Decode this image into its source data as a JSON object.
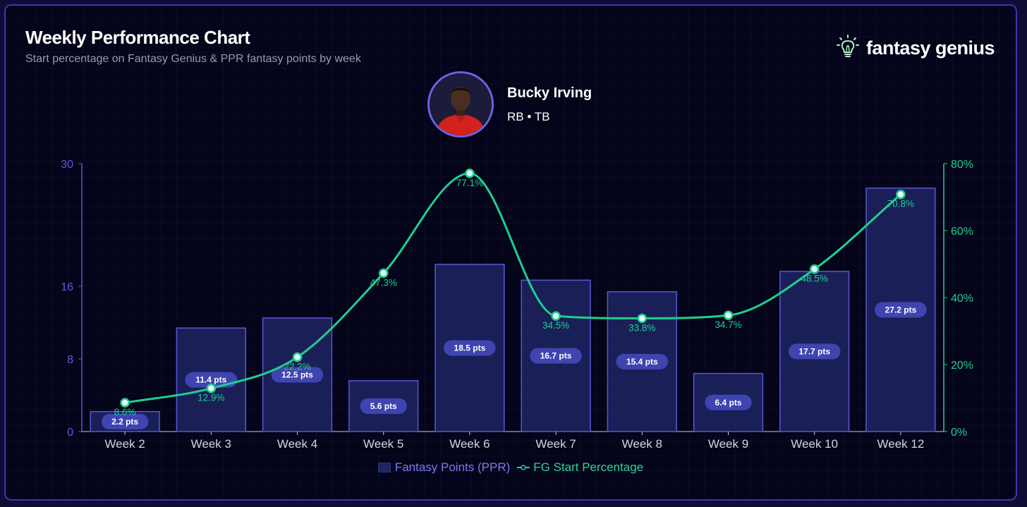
{
  "header": {
    "title": "Weekly Performance Chart",
    "subtitle": "Start percentage on Fantasy Genius & PPR fantasy points by week"
  },
  "brand": {
    "name": "fantasy genius",
    "icon": "lightbulb-icon"
  },
  "player": {
    "name": "Bucky Irving",
    "position_team": "RB • TB"
  },
  "colors": {
    "bar_fill": "#1e2463",
    "bar_stroke": "#5a57d6",
    "line": "#1fcf8f",
    "left_axis": "#5a57d6",
    "right_axis": "#1fcf8f",
    "pill": "#3f44b0"
  },
  "chart_data": {
    "type": "bar",
    "categories": [
      "Week 2",
      "Week 3",
      "Week 4",
      "Week 5",
      "Week 6",
      "Week 7",
      "Week 8",
      "Week 9",
      "Week 10",
      "Week 12"
    ],
    "series": [
      {
        "name": "Fantasy Points (PPR)",
        "type": "bar",
        "axis": "left",
        "values": [
          2.2,
          11.4,
          12.5,
          5.6,
          18.5,
          16.7,
          15.4,
          6.4,
          17.7,
          27.2
        ],
        "labels": [
          "2.2 pts",
          "11.4 pts",
          "12.5 pts",
          "5.6 pts",
          "18.5 pts",
          "16.7 pts",
          "15.4 pts",
          "6.4 pts",
          "17.7 pts",
          "27.2 pts"
        ]
      },
      {
        "name": "FG Start Percentage",
        "type": "line",
        "axis": "right",
        "values": [
          8.6,
          12.9,
          22.2,
          47.3,
          77.1,
          34.5,
          33.8,
          34.7,
          48.5,
          70.8
        ],
        "labels": [
          "8.6%",
          "12.9%",
          "22.2%",
          "47.3%",
          "77.1%",
          "34.5%",
          "33.8%",
          "34.7%",
          "48.5%",
          "70.8%"
        ]
      }
    ],
    "y_left": {
      "ticks": [
        0,
        8,
        16,
        30
      ],
      "tick_labels": [
        "0",
        "8",
        "16",
        "30"
      ],
      "scale": "non-linear (sqrt-like)"
    },
    "y_right": {
      "ticks": [
        0,
        20,
        40,
        60,
        80
      ],
      "tick_labels": [
        "0%",
        "20%",
        "40%",
        "60%",
        "80%"
      ],
      "ylim": [
        0,
        80
      ]
    },
    "legend": {
      "position": "bottom-center"
    },
    "grid": false
  }
}
